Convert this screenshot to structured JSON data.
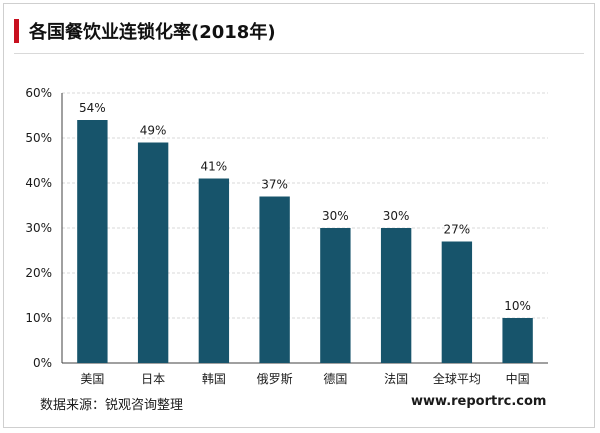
{
  "header": {
    "title": "各国餐饮业连锁化率(2018年)"
  },
  "footer": {
    "source": "数据来源：锐观咨询整理",
    "website": "www.reportrc.com"
  },
  "colors": {
    "bar": "#17546b",
    "accent": "#c8101f",
    "grid": "#d9d9d9",
    "axis": "#404040"
  },
  "chart_data": {
    "type": "bar",
    "categories": [
      "美国",
      "日本",
      "韩国",
      "俄罗斯",
      "德国",
      "法国",
      "全球平均",
      "中国"
    ],
    "values": [
      54,
      49,
      41,
      37,
      30,
      30,
      27,
      10
    ],
    "data_labels": [
      "54%",
      "49%",
      "41%",
      "37%",
      "30%",
      "30%",
      "27%",
      "10%"
    ],
    "title": "各国餐饮业连锁化率(2018年)",
    "xlabel": "",
    "ylabel": "",
    "ylim": [
      0,
      60
    ],
    "yticks": [
      0,
      10,
      20,
      30,
      40,
      50,
      60
    ],
    "ytick_labels": [
      "0%",
      "10%",
      "20%",
      "30%",
      "40%",
      "50%",
      "60%"
    ],
    "grid": true,
    "legend": "none"
  }
}
